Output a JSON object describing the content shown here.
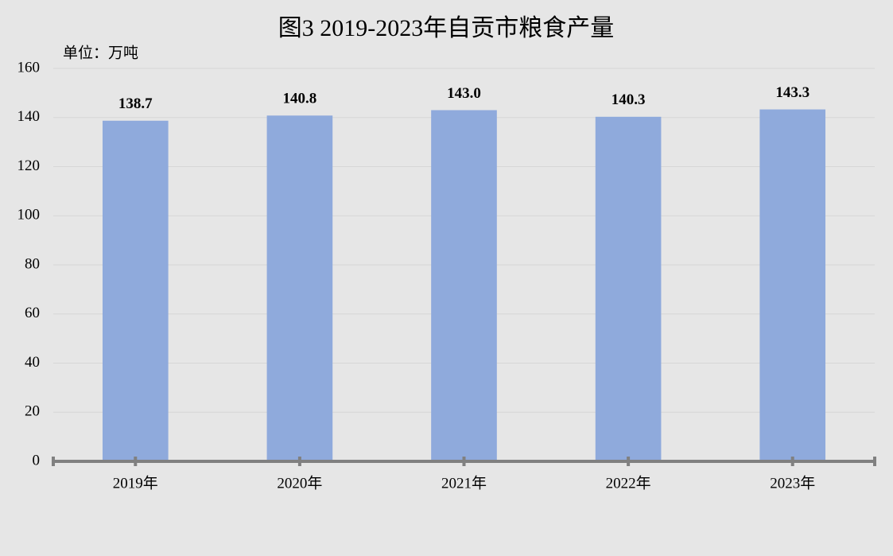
{
  "chart_data": {
    "type": "bar",
    "title": "图3  2019-2023年自贡市粮食产量",
    "y_axis_label": "单位：万吨",
    "categories": [
      "2019年",
      "2020年",
      "2021年",
      "2022年",
      "2023年"
    ],
    "values": [
      138.7,
      140.8,
      143.0,
      140.3,
      143.3
    ],
    "value_labels": [
      "138.7",
      "140.8",
      "143.0",
      "140.3",
      "143.3"
    ],
    "color": "#8faadc",
    "ylim": [
      0,
      160
    ],
    "yticks": [
      0,
      20,
      40,
      60,
      80,
      100,
      120,
      140,
      160
    ],
    "grid": true
  }
}
